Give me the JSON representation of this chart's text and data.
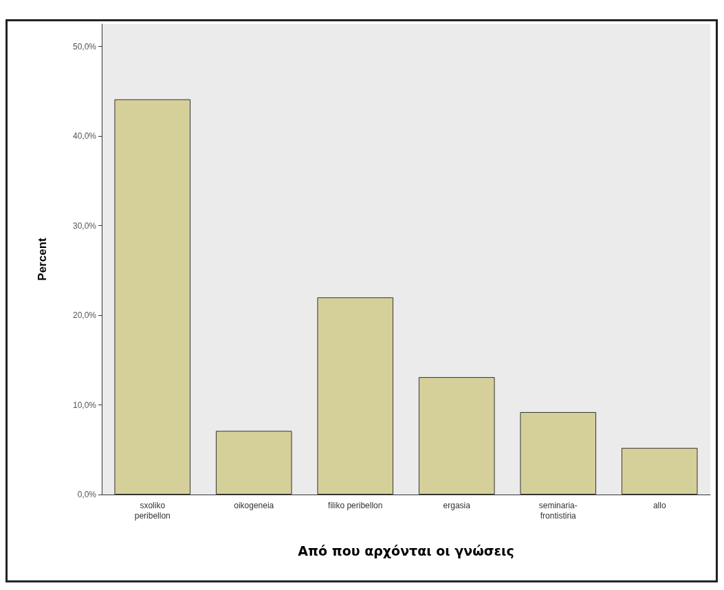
{
  "chart_data": {
    "type": "bar",
    "xlabel": "Από που αρχόνται οι γνώσεις",
    "ylabel": "Percent",
    "categories": [
      "sxoliko\nperibellon",
      "oikogeneia",
      "filiko peribellon",
      "ergasia",
      "seminaria-\nfrontistiria",
      "allo"
    ],
    "values": [
      44.1,
      7.1,
      22.0,
      13.1,
      9.2,
      5.2
    ],
    "color": "#d5cf9a",
    "ylim": [
      0,
      52.5
    ],
    "yticks": [
      {
        "value": 0,
        "label": "0,0%"
      },
      {
        "value": 10,
        "label": "10,0%"
      },
      {
        "value": 20,
        "label": "20,0%"
      },
      {
        "value": 30,
        "label": "30,0%"
      },
      {
        "value": 40,
        "label": "40,0%"
      },
      {
        "value": 50,
        "label": "50,0%"
      }
    ],
    "grid": false
  }
}
